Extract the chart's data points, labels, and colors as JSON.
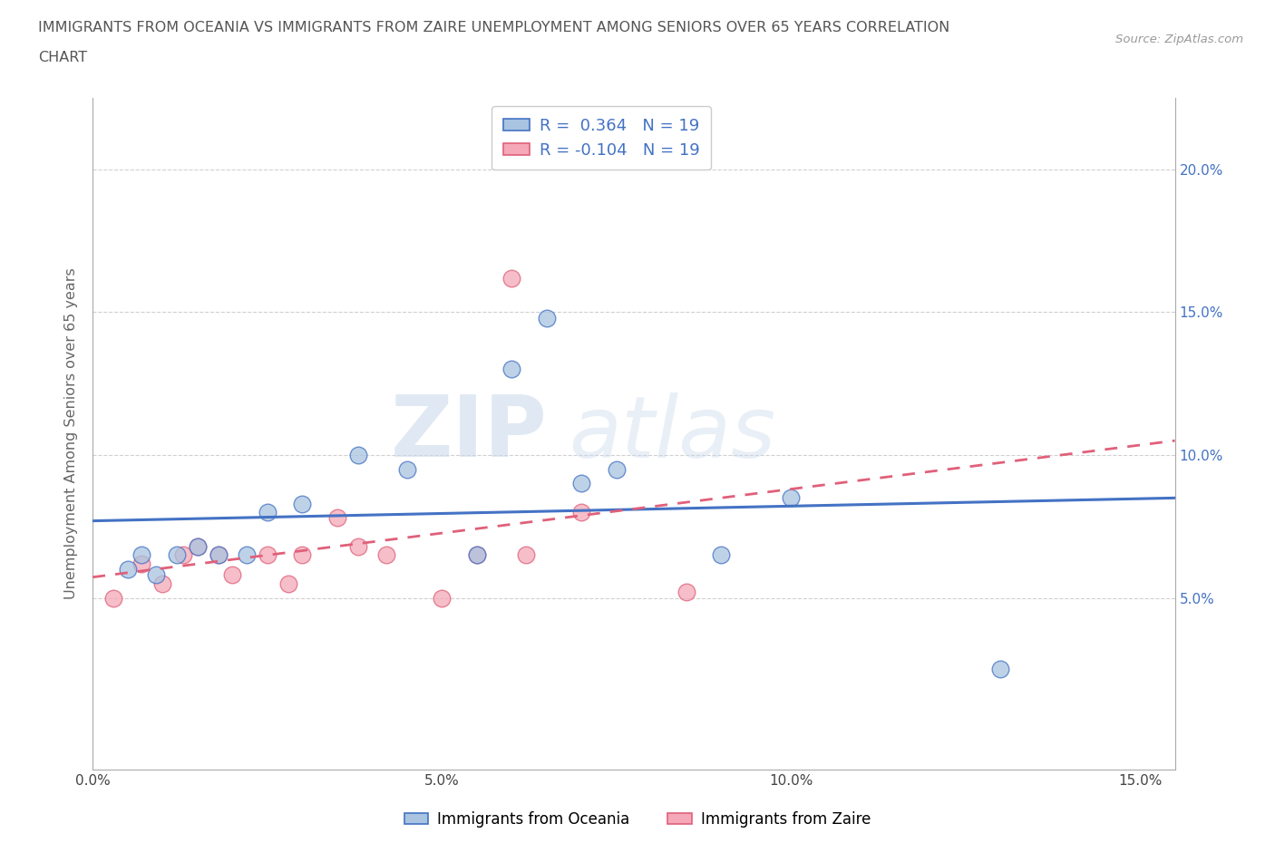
{
  "title_line1": "IMMIGRANTS FROM OCEANIA VS IMMIGRANTS FROM ZAIRE UNEMPLOYMENT AMONG SENIORS OVER 65 YEARS CORRELATION",
  "title_line2": "CHART",
  "source": "Source: ZipAtlas.com",
  "ylabel": "Unemployment Among Seniors over 65 years",
  "xlim": [
    0.0,
    0.155
  ],
  "ylim": [
    -0.01,
    0.225
  ],
  "xticks": [
    0.0,
    0.05,
    0.1,
    0.15
  ],
  "xtick_labels": [
    "0.0%",
    "5.0%",
    "10.0%",
    "15.0%"
  ],
  "yticks": [
    0.05,
    0.1,
    0.15,
    0.2
  ],
  "ytick_labels": [
    "5.0%",
    "10.0%",
    "15.0%",
    "20.0%"
  ],
  "R_oceania": 0.364,
  "N_oceania": 19,
  "R_zaire": -0.104,
  "N_zaire": 19,
  "oceania_color": "#a8c4e0",
  "zaire_color": "#f4a8b8",
  "line_oceania_color": "#4472c4",
  "line_zaire_color": "#e0607a",
  "watermark_zip": "ZIP",
  "watermark_atlas": "atlas",
  "legend_label_oceania": "Immigrants from Oceania",
  "legend_label_zaire": "Immigrants from Zaire",
  "oceania_x": [
    0.005,
    0.007,
    0.009,
    0.012,
    0.015,
    0.018,
    0.022,
    0.025,
    0.03,
    0.038,
    0.045,
    0.055,
    0.06,
    0.065,
    0.07,
    0.075,
    0.09,
    0.1,
    0.13
  ],
  "oceania_y": [
    0.06,
    0.065,
    0.058,
    0.065,
    0.068,
    0.065,
    0.065,
    0.08,
    0.083,
    0.1,
    0.095,
    0.065,
    0.13,
    0.148,
    0.09,
    0.095,
    0.065,
    0.085,
    0.025
  ],
  "zaire_x": [
    0.003,
    0.007,
    0.01,
    0.013,
    0.015,
    0.018,
    0.02,
    0.025,
    0.028,
    0.03,
    0.035,
    0.038,
    0.042,
    0.05,
    0.055,
    0.06,
    0.062,
    0.07,
    0.085
  ],
  "zaire_y": [
    0.05,
    0.062,
    0.055,
    0.065,
    0.068,
    0.065,
    0.058,
    0.065,
    0.055,
    0.065,
    0.078,
    0.068,
    0.065,
    0.05,
    0.065,
    0.162,
    0.065,
    0.08,
    0.052
  ],
  "background_color": "#ffffff",
  "grid_color": "#d0d0d0"
}
